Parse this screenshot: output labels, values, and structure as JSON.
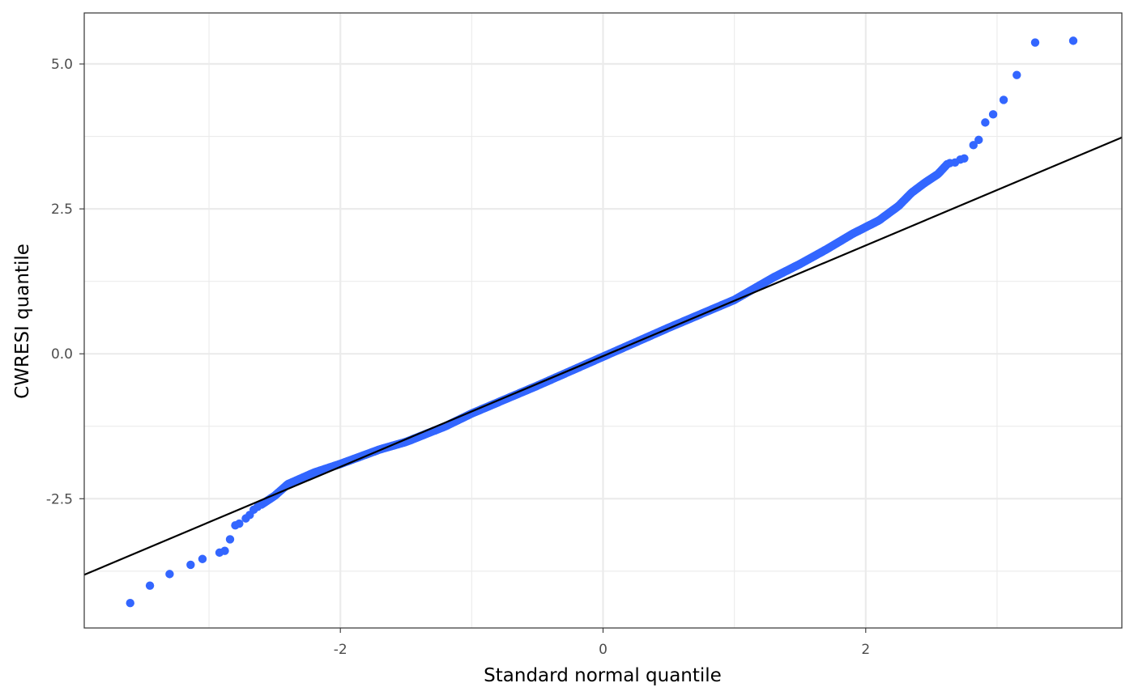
{
  "chart_data": {
    "type": "scatter",
    "title": "",
    "xlabel": "Standard normal quantile",
    "ylabel": "CWRESI quantile",
    "xlim": [
      -3.95,
      3.95
    ],
    "ylim": [
      -4.73,
      5.88
    ],
    "x_ticks": [
      -2,
      0,
      2
    ],
    "x_tick_labels": [
      "-2",
      "0",
      "2"
    ],
    "x_minor_ticks": [
      -3,
      -1,
      1,
      3
    ],
    "y_ticks": [
      -2.5,
      0.0,
      2.5,
      5.0
    ],
    "y_tick_labels": [
      "-2.5",
      "0.0",
      "2.5",
      "5.0"
    ],
    "y_minor_ticks": [
      -3.75,
      -1.25,
      1.25,
      3.75
    ],
    "grid": true,
    "legend": "none",
    "point_color": "#3366ff",
    "line_color": "#000000",
    "reference_line": {
      "intercept": -0.04,
      "slope": 0.955
    },
    "outlier_points": [
      {
        "x": 3.58,
        "y": 5.4
      },
      {
        "x": 3.29,
        "y": 5.37
      },
      {
        "x": 3.15,
        "y": 4.81
      },
      {
        "x": 3.05,
        "y": 4.38
      },
      {
        "x": 2.97,
        "y": 4.13
      },
      {
        "x": 2.91,
        "y": 3.99
      },
      {
        "x": 2.86,
        "y": 3.69
      },
      {
        "x": 2.82,
        "y": 3.6
      },
      {
        "x": 2.75,
        "y": 3.37
      },
      {
        "x": 2.72,
        "y": 3.35
      },
      {
        "x": 2.68,
        "y": 3.3
      },
      {
        "x": 2.64,
        "y": 3.29
      },
      {
        "x": -2.63,
        "y": -2.64
      },
      {
        "x": -2.66,
        "y": -2.69
      },
      {
        "x": -2.69,
        "y": -2.78
      },
      {
        "x": -2.72,
        "y": -2.84
      },
      {
        "x": -2.77,
        "y": -2.93
      },
      {
        "x": -2.8,
        "y": -2.96
      },
      {
        "x": -2.84,
        "y": -3.2
      },
      {
        "x": -2.88,
        "y": -3.4
      },
      {
        "x": -2.92,
        "y": -3.43
      },
      {
        "x": -3.05,
        "y": -3.54
      },
      {
        "x": -3.14,
        "y": -3.64
      },
      {
        "x": -3.3,
        "y": -3.8
      },
      {
        "x": -3.45,
        "y": -4.0
      },
      {
        "x": -3.6,
        "y": -4.3
      }
    ],
    "curve_knots": [
      {
        "x": -2.6,
        "y": -2.6
      },
      {
        "x": -2.5,
        "y": -2.45
      },
      {
        "x": -2.4,
        "y": -2.25
      },
      {
        "x": -2.2,
        "y": -2.05
      },
      {
        "x": -2.0,
        "y": -1.9
      },
      {
        "x": -1.7,
        "y": -1.65
      },
      {
        "x": -1.5,
        "y": -1.52
      },
      {
        "x": -1.2,
        "y": -1.25
      },
      {
        "x": -1.0,
        "y": -1.03
      },
      {
        "x": -0.5,
        "y": -0.55
      },
      {
        "x": 0.0,
        "y": -0.05
      },
      {
        "x": 0.5,
        "y": 0.45
      },
      {
        "x": 1.0,
        "y": 0.93
      },
      {
        "x": 1.3,
        "y": 1.32
      },
      {
        "x": 1.5,
        "y": 1.55
      },
      {
        "x": 1.7,
        "y": 1.8
      },
      {
        "x": 1.9,
        "y": 2.07
      },
      {
        "x": 2.1,
        "y": 2.3
      },
      {
        "x": 2.25,
        "y": 2.55
      },
      {
        "x": 2.35,
        "y": 2.78
      },
      {
        "x": 2.45,
        "y": 2.95
      },
      {
        "x": 2.55,
        "y": 3.1
      },
      {
        "x": 2.62,
        "y": 3.27
      }
    ]
  }
}
